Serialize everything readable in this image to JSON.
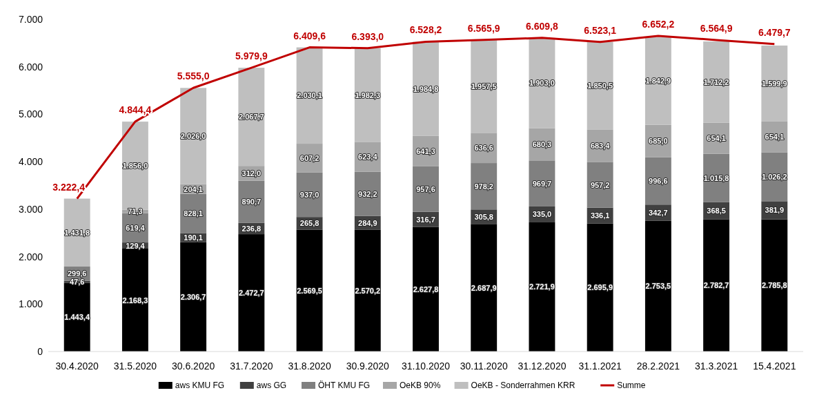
{
  "chart_data": {
    "type": "bar",
    "stacked": true,
    "categories": [
      "30.4.2020",
      "31.5.2020",
      "30.6.2020",
      "31.7.2020",
      "31.8.2020",
      "30.9.2020",
      "31.10.2020",
      "30.11.2020",
      "31.12.2020",
      "31.1.2021",
      "28.2.2021",
      "31.3.2021",
      "15.4.2021"
    ],
    "ylim": [
      0,
      7000
    ],
    "yticks": [
      {
        "value": 0,
        "label": "0"
      },
      {
        "value": 1000,
        "label": "1.000"
      },
      {
        "value": 2000,
        "label": "2.000"
      },
      {
        "value": 3000,
        "label": "3.000"
      },
      {
        "value": 4000,
        "label": "4.000"
      },
      {
        "value": 5000,
        "label": "5.000"
      },
      {
        "value": 6000,
        "label": "6.000"
      },
      {
        "value": 7000,
        "label": "7.000"
      }
    ],
    "legend": "bottom",
    "grid": false,
    "series": [
      {
        "name": "aws KMU FG",
        "color": "#000000",
        "values": [
          1443.4,
          2168.3,
          2306.7,
          2472.7,
          2569.5,
          2570.2,
          2627.8,
          2687.9,
          2721.9,
          2695.9,
          2753.5,
          2782.7,
          2785.8
        ],
        "value_labels": [
          "1.443,4",
          "2.168,3",
          "2.306,7",
          "2.472,7",
          "2.569,5",
          "2.570,2",
          "2.627,8",
          "2.687,9",
          "2.721,9",
          "2.695,9",
          "2.753,5",
          "2.782,7",
          "2.785,8"
        ]
      },
      {
        "name": "aws GG",
        "color": "#404040",
        "values": [
          47.6,
          129.4,
          190.1,
          236.8,
          265.8,
          284.9,
          316.7,
          305.8,
          335.0,
          336.1,
          342.7,
          368.5,
          381.9
        ],
        "value_labels": [
          "47,6",
          "129,4",
          "190,1",
          "236,8",
          "265,8",
          "284,9",
          "316,7",
          "305,8",
          "335,0",
          "336,1",
          "342,7",
          "368,5",
          "381,9"
        ]
      },
      {
        "name": "ÖHT KMU FG",
        "color": "#808080",
        "values": [
          299.6,
          619.4,
          828.1,
          890.7,
          937.0,
          932.2,
          957.6,
          978.2,
          969.7,
          957.2,
          996.6,
          1015.8,
          1026.2
        ],
        "value_labels": [
          "299,6",
          "619,4",
          "828,1",
          "890,7",
          "937,0",
          "932,2",
          "957,6",
          "978,2",
          "969,7",
          "957,2",
          "996,6",
          "1.015,8",
          "1.026,2"
        ]
      },
      {
        "name": "OeKB 90%",
        "color": "#a6a6a6",
        "values": [
          null,
          71.3,
          204.1,
          312.0,
          607.2,
          623.4,
          641.3,
          636.6,
          680.3,
          683.4,
          685.0,
          654.1,
          654.1
        ],
        "value_labels": [
          null,
          "71,3",
          "204,1",
          "312,0",
          "607,2",
          "623,4",
          "641,3",
          "636,6",
          "680,3",
          "683,4",
          "685,0",
          "654,1",
          "654,1"
        ]
      },
      {
        "name": "OeKB - Sonderrahmen KRR",
        "color": "#bfbfbf",
        "values": [
          1431.8,
          1856.0,
          2026.0,
          2067.7,
          2030.1,
          1982.3,
          1984.8,
          1957.5,
          1903.0,
          1850.5,
          1842.9,
          1712.2,
          1599.9
        ],
        "value_labels": [
          "1.431,8",
          "1.856,0",
          "2.026,0",
          "2.067,7",
          "2.030,1",
          "1.982,3",
          "1.984,8",
          "1.957,5",
          "1.903,0",
          "1.850,5",
          "1.842,9",
          "1.712,2",
          "1.599,9"
        ]
      },
      {
        "name": "Summe",
        "type": "line",
        "color": "#c00000",
        "values": [
          3222.4,
          4844.4,
          5555.0,
          5979.9,
          6409.6,
          6393.0,
          6528.2,
          6565.9,
          6609.8,
          6523.1,
          6652.2,
          6564.9,
          6479.7
        ],
        "value_labels": [
          "3.222,4",
          "4.844,4",
          "5.555,0",
          "5.979,9",
          "6.409,6",
          "6.393,0",
          "6.528,2",
          "6.565,9",
          "6.609,8",
          "6.523,1",
          "6.652,2",
          "6.564,9",
          "6.479,7"
        ]
      }
    ]
  }
}
